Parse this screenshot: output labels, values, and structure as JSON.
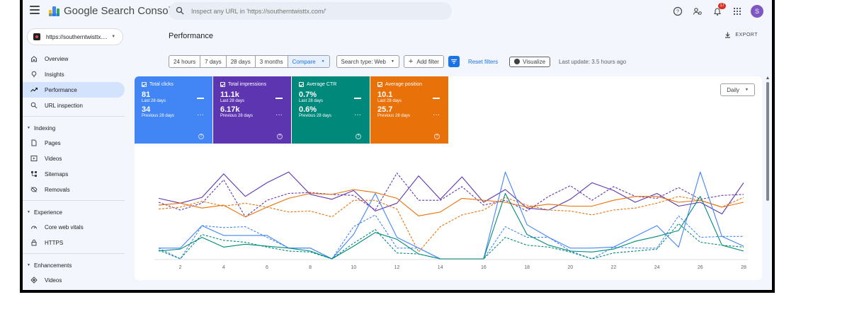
{
  "app": {
    "title": "Google Search Console"
  },
  "search": {
    "placeholder": "Inspect any URL in 'https://southerntwisttx.com/'"
  },
  "top_icons": {
    "notifications_count": "17",
    "avatar_letter": "S"
  },
  "property": {
    "label": "https://southerntwisttx...."
  },
  "sidebar": {
    "items": [
      {
        "label": "Overview",
        "icon": "home-icon",
        "active": false
      },
      {
        "label": "Insights",
        "icon": "lightbulb-icon",
        "active": false
      },
      {
        "label": "Performance",
        "icon": "trending-up-icon",
        "active": true
      },
      {
        "label": "URL inspection",
        "icon": "search-icon",
        "active": false
      }
    ],
    "sections": [
      {
        "title": "Indexing",
        "items": [
          {
            "label": "Pages",
            "icon": "pages-icon"
          },
          {
            "label": "Videos",
            "icon": "video-icon"
          },
          {
            "label": "Sitemaps",
            "icon": "sitemap-icon"
          },
          {
            "label": "Removals",
            "icon": "eye-off-icon"
          }
        ]
      },
      {
        "title": "Experience",
        "items": [
          {
            "label": "Core web vitals",
            "icon": "gauge-icon"
          },
          {
            "label": "HTTPS",
            "icon": "lock-icon"
          }
        ]
      },
      {
        "title": "Enhancements",
        "items": [
          {
            "label": "Videos",
            "icon": "diamond-icon"
          }
        ]
      }
    ]
  },
  "main": {
    "page_title": "Performance",
    "export_label": "EXPORT",
    "filters": {
      "ranges": [
        "24 hours",
        "7 days",
        "28 days",
        "3 months"
      ],
      "compare_label": "Compare",
      "search_type": "Search type: Web",
      "add_filter": "Add filter",
      "reset_filters": "Reset filters",
      "visualize": "Visualize",
      "last_update": "Last update: 3.5 hours ago"
    },
    "metrics": [
      {
        "label": "Total clicks",
        "current": "81",
        "current_period": "Last 28 days",
        "previous": "34",
        "previous_period": "Previous 28 days",
        "color": "#4285f4"
      },
      {
        "label": "Total impressions",
        "current": "11.1k",
        "current_period": "Last 28 days",
        "previous": "6.17k",
        "previous_period": "Previous 28 days",
        "color": "#5e35b1"
      },
      {
        "label": "Average CTR",
        "current": "0.7%",
        "current_period": "Last 28 days",
        "previous": "0.6%",
        "previous_period": "Previous 28 days",
        "color": "#00897b"
      },
      {
        "label": "Average position",
        "current": "10.1",
        "current_period": "Last 28 days",
        "previous": "25.7",
        "previous_period": "Previous 28 days",
        "color": "#e8710a"
      }
    ],
    "granularity": "Daily"
  },
  "chart_data": {
    "type": "line",
    "x": [
      1,
      2,
      3,
      4,
      5,
      6,
      7,
      8,
      9,
      10,
      11,
      12,
      13,
      14,
      15,
      16,
      17,
      18,
      19,
      20,
      21,
      22,
      23,
      24,
      25,
      26,
      27,
      28
    ],
    "x_ticks": [
      "2",
      "4",
      "6",
      "8",
      "10",
      "12",
      "14",
      "16",
      "18",
      "20",
      "22",
      "24",
      "26",
      "28"
    ],
    "ylim": [
      0,
      1
    ],
    "normalized": true,
    "series": [
      {
        "name": "Total impressions",
        "style": "solid",
        "color": "#5e35b1",
        "values": [
          0.62,
          0.57,
          0.63,
          0.87,
          0.64,
          0.78,
          0.89,
          0.66,
          0.61,
          0.7,
          0.49,
          0.57,
          0.85,
          0.61,
          0.84,
          0.58,
          0.71,
          0.52,
          0.5,
          0.61,
          0.78,
          0.7,
          0.58,
          0.67,
          0.54,
          0.58,
          0.46,
          0.78
        ]
      },
      {
        "name": "Total impressions",
        "style": "dashed",
        "color": "#5e35b1",
        "values": [
          0.58,
          0.5,
          0.57,
          0.81,
          0.43,
          0.6,
          0.67,
          0.68,
          0.66,
          0.65,
          0.5,
          0.88,
          0.6,
          0.6,
          0.74,
          0.55,
          0.6,
          0.49,
          0.64,
          0.75,
          0.6,
          0.74,
          0.64,
          0.62,
          0.73,
          0.61,
          0.65,
          0.66
        ]
      },
      {
        "name": "Average position",
        "style": "solid",
        "color": "#e8710a",
        "values": [
          0.55,
          0.57,
          0.52,
          0.55,
          0.43,
          0.53,
          0.62,
          0.67,
          0.66,
          0.71,
          0.68,
          0.62,
          0.44,
          0.48,
          0.62,
          0.6,
          0.58,
          0.53,
          0.56,
          0.54,
          0.54,
          0.6,
          0.64,
          0.64,
          0.58,
          0.6,
          0.53,
          0.58
        ]
      },
      {
        "name": "Average position",
        "style": "dashed",
        "color": "#e8710a",
        "values": [
          0.51,
          0.53,
          0.59,
          0.54,
          0.57,
          0.53,
          0.48,
          0.49,
          0.43,
          0.6,
          0.6,
          0.51,
          0.07,
          0.33,
          0.45,
          0.5,
          0.63,
          0.55,
          0.5,
          0.49,
          0.45,
          0.5,
          0.52,
          0.57,
          0.64,
          0.6,
          0.53,
          0.63
        ]
      },
      {
        "name": "Total clicks",
        "style": "solid",
        "color": "#4285f4",
        "values": [
          0.11,
          0.11,
          0.34,
          0.24,
          0.24,
          0.24,
          0.11,
          0.11,
          0.0,
          0.25,
          0.67,
          0.22,
          0.11,
          0.0,
          0.0,
          0.0,
          0.89,
          0.35,
          0.22,
          0.11,
          0.11,
          0.12,
          0.23,
          0.34,
          0.12,
          0.89,
          0.23,
          0.13
        ]
      },
      {
        "name": "Total clicks",
        "style": "dashed",
        "color": "#4285f4",
        "values": [
          0.11,
          0.0,
          0.34,
          0.32,
          0.33,
          0.22,
          0.11,
          0.11,
          0.0,
          0.33,
          0.45,
          0.11,
          0.11,
          0.0,
          0.0,
          0.0,
          0.33,
          0.22,
          0.22,
          0.08,
          0.0,
          0.12,
          0.11,
          0.11,
          0.44,
          0.22,
          0.23,
          0.23
        ]
      },
      {
        "name": "Average CTR",
        "style": "solid",
        "color": "#00897b",
        "values": [
          0.08,
          0.1,
          0.22,
          0.12,
          0.15,
          0.13,
          0.11,
          0.08,
          0.0,
          0.13,
          0.27,
          0.2,
          0.05,
          0.0,
          0.0,
          0.0,
          0.67,
          0.25,
          0.14,
          0.08,
          0.07,
          0.1,
          0.18,
          0.23,
          0.29,
          0.64,
          0.14,
          0.08
        ]
      },
      {
        "name": "Average CTR",
        "style": "dashed",
        "color": "#00897b",
        "values": [
          0.09,
          0.0,
          0.25,
          0.19,
          0.17,
          0.12,
          0.08,
          0.07,
          0.0,
          0.16,
          0.3,
          0.06,
          0.05,
          0.0,
          0.0,
          0.0,
          0.22,
          0.14,
          0.12,
          0.07,
          0.0,
          0.06,
          0.08,
          0.1,
          0.36,
          0.17,
          0.14,
          0.12
        ]
      }
    ]
  }
}
